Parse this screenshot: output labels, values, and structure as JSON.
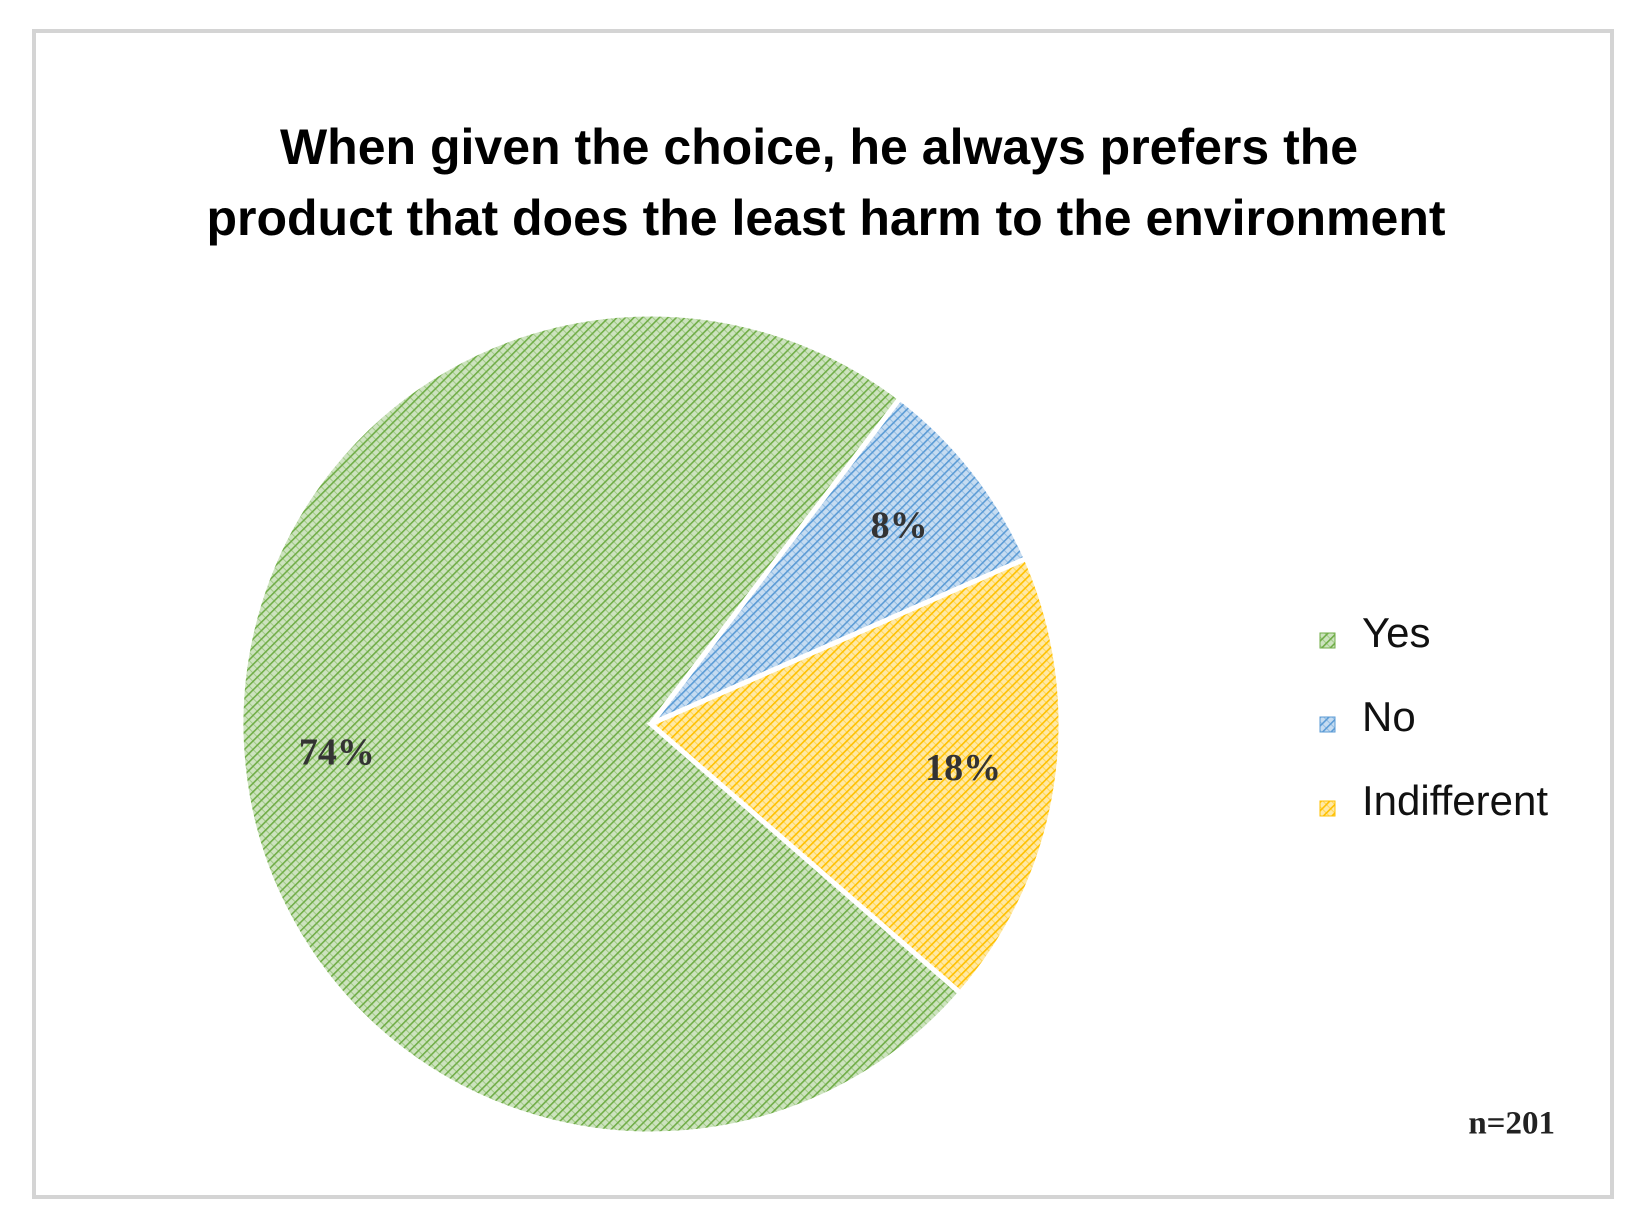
{
  "chart_data": {
    "type": "pie",
    "title": [
      "When given the choice, he always prefers the",
      "product that does the least harm to the environment"
    ],
    "categories": [
      "Yes",
      "No",
      "Indifferent"
    ],
    "values": [
      74,
      8,
      18
    ],
    "value_labels": [
      "74%",
      "8%",
      "18%"
    ],
    "colors": [
      "#70ad47",
      "#5b9bd5",
      "#ffc000"
    ],
    "legend": "right",
    "annotation": "n=201"
  }
}
